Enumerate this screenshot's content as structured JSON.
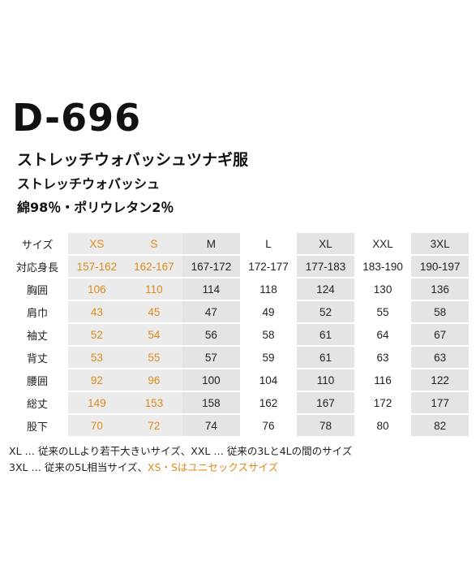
{
  "product": {
    "model": "D-696",
    "name": "ストレッチウォバッシュツナギ服",
    "fabric": "ストレッチウォバッシュ",
    "material": "綿98％・ポリウレタン2％"
  },
  "table": {
    "header_label": "サイズ",
    "sizes": [
      "XS",
      "S",
      "M",
      "L",
      "XL",
      "XXL",
      "3XL"
    ],
    "rows": [
      {
        "label": "対応身長",
        "values": [
          "157-162",
          "162-167",
          "167-172",
          "172-177",
          "177-183",
          "183-190",
          "190-197"
        ]
      },
      {
        "label": "胸囲",
        "values": [
          "106",
          "110",
          "114",
          "118",
          "124",
          "130",
          "136"
        ]
      },
      {
        "label": "肩巾",
        "values": [
          "43",
          "45",
          "47",
          "49",
          "52",
          "55",
          "58"
        ]
      },
      {
        "label": "袖丈",
        "values": [
          "52",
          "54",
          "56",
          "58",
          "61",
          "64",
          "67"
        ]
      },
      {
        "label": "背丈",
        "values": [
          "53",
          "55",
          "57",
          "59",
          "61",
          "63",
          "63"
        ]
      },
      {
        "label": "腰囲",
        "values": [
          "92",
          "96",
          "100",
          "104",
          "110",
          "116",
          "122"
        ]
      },
      {
        "label": "総丈",
        "values": [
          "149",
          "153",
          "158",
          "162",
          "167",
          "172",
          "177"
        ]
      },
      {
        "label": "股下",
        "values": [
          "70",
          "72",
          "74",
          "76",
          "78",
          "80",
          "82"
        ]
      }
    ]
  },
  "notes": {
    "line1": "XL … 従来のLLより若干大きいサイズ、XXL … 従来の3Lと4Lの間のサイズ",
    "line2_plain": "3XL … 従来の5L相当サイズ、",
    "line2_accent": "XS・Sはユニセックスサイズ"
  },
  "colors": {
    "accent": "#e08a1a",
    "gray_column": "#e4e4e4",
    "orange_column_bg": "#ebebeb"
  }
}
